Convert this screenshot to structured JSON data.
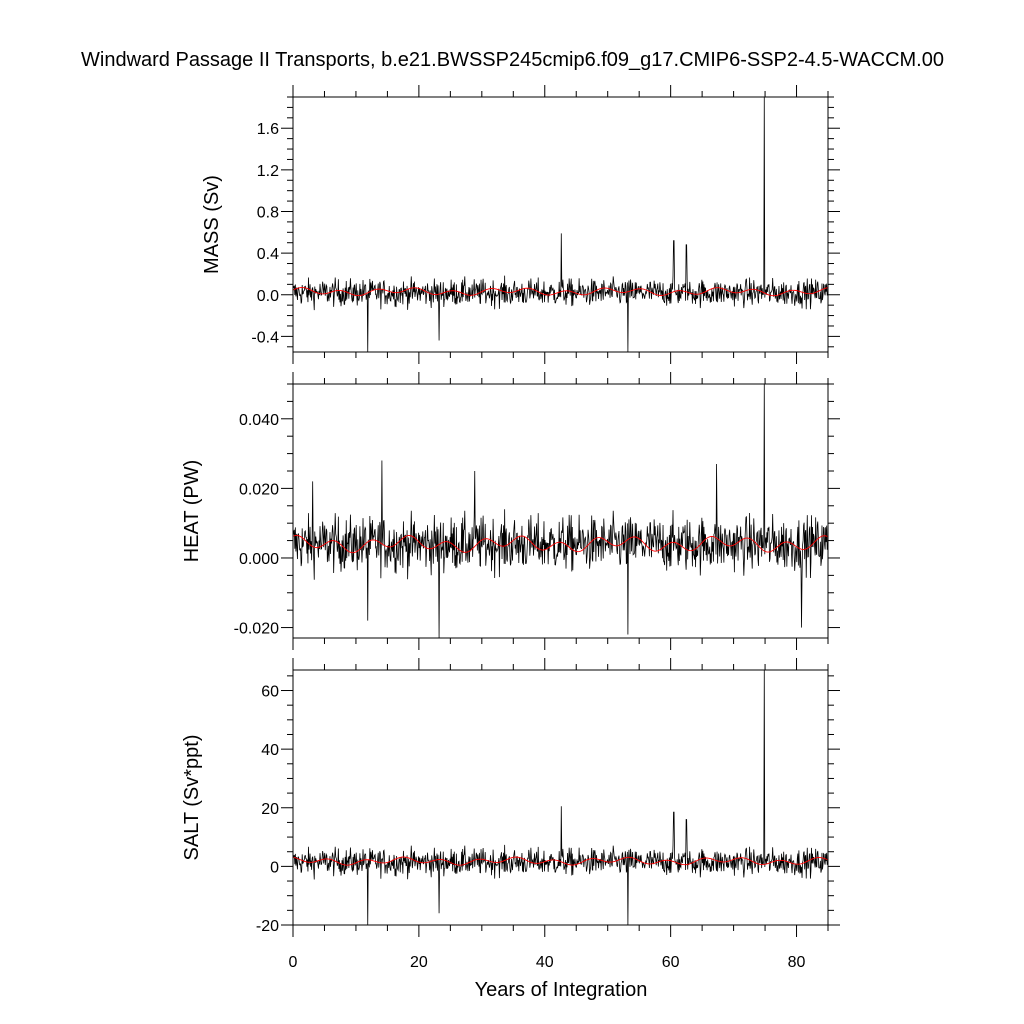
{
  "chart_data": {
    "title": "Windward Passage II Transports, b.e21.BWSSP245cmip6.f09_g17.CMIP6-SSP2-4.5-WACCM.00",
    "xlabel": "Years of Integration",
    "xlim": [
      0,
      85
    ],
    "xticks": [
      0,
      20,
      40,
      60,
      80
    ],
    "panels": [
      {
        "type": "line",
        "ylabel": "MASS (Sv)",
        "ylim": [
          -0.55,
          1.9
        ],
        "yticks": [
          -0.4,
          0.0,
          0.4,
          0.8,
          1.2,
          1.6
        ],
        "tick_labels": [
          "-0.4",
          "0.0",
          "0.4",
          "0.8",
          "1.2",
          "1.6"
        ],
        "baseline": 0.02,
        "noise": 0.09,
        "smooth_mean": 0.03,
        "smooth_amp": 0.04,
        "spikes": [
          {
            "x": 11.9,
            "y": -0.55
          },
          {
            "x": 23.2,
            "y": -0.44
          },
          {
            "x": 42.6,
            "y": 0.59
          },
          {
            "x": 53.2,
            "y": -0.55
          },
          {
            "x": 60.5,
            "y": 0.52
          },
          {
            "x": 62.5,
            "y": 0.48
          },
          {
            "x": 74.9,
            "y": 1.9
          }
        ],
        "series": [
          {
            "name": "",
            "role": "annual",
            "color": "#000000"
          },
          {
            "name": "",
            "role": "smoothed",
            "color": "#ff0000"
          }
        ]
      },
      {
        "type": "line",
        "ylabel": "HEAT (PW)",
        "ylim": [
          -0.023,
          0.05
        ],
        "yticks": [
          -0.02,
          0.0,
          0.02,
          0.04
        ],
        "tick_labels": [
          "-0.020",
          "0.000",
          "0.020",
          "0.040"
        ],
        "baseline": 0.004,
        "noise": 0.0055,
        "smooth_mean": 0.004,
        "smooth_amp": 0.0025,
        "spikes": [
          {
            "x": 3.1,
            "y": 0.022
          },
          {
            "x": 11.9,
            "y": -0.018
          },
          {
            "x": 14.1,
            "y": 0.028
          },
          {
            "x": 23.2,
            "y": -0.023
          },
          {
            "x": 28.9,
            "y": 0.025
          },
          {
            "x": 53.2,
            "y": -0.022
          },
          {
            "x": 67.3,
            "y": 0.027
          },
          {
            "x": 74.9,
            "y": 0.05
          },
          {
            "x": 80.8,
            "y": -0.02
          }
        ],
        "series": [
          {
            "name": "",
            "role": "annual",
            "color": "#000000"
          },
          {
            "name": "",
            "role": "smoothed",
            "color": "#ff0000"
          }
        ]
      },
      {
        "type": "line",
        "ylabel": "SALT (Sv*ppt)",
        "ylim": [
          -20,
          67
        ],
        "yticks": [
          -20,
          0,
          20,
          40,
          60
        ],
        "tick_labels": [
          "-20",
          "0",
          "20",
          "40",
          "60"
        ],
        "baseline": 1.5,
        "noise": 3.2,
        "smooth_mean": 1.8,
        "smooth_amp": 1.4,
        "spikes": [
          {
            "x": 11.9,
            "y": -20
          },
          {
            "x": 23.2,
            "y": -16
          },
          {
            "x": 42.6,
            "y": 20.5
          },
          {
            "x": 53.2,
            "y": -20
          },
          {
            "x": 60.5,
            "y": 18.5
          },
          {
            "x": 62.5,
            "y": 16
          },
          {
            "x": 74.9,
            "y": 67
          }
        ],
        "series": [
          {
            "name": "",
            "role": "annual",
            "color": "#000000"
          },
          {
            "name": "",
            "role": "smoothed",
            "color": "#ff0000"
          }
        ]
      }
    ]
  }
}
